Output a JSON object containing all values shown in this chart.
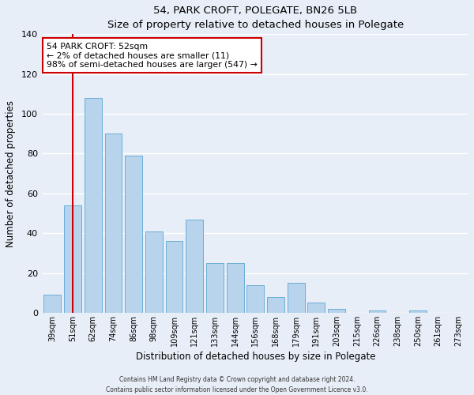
{
  "title": "54, PARK CROFT, POLEGATE, BN26 5LB",
  "subtitle": "Size of property relative to detached houses in Polegate",
  "xlabel": "Distribution of detached houses by size in Polegate",
  "ylabel": "Number of detached properties",
  "bar_labels": [
    "39sqm",
    "51sqm",
    "62sqm",
    "74sqm",
    "86sqm",
    "98sqm",
    "109sqm",
    "121sqm",
    "133sqm",
    "144sqm",
    "156sqm",
    "168sqm",
    "179sqm",
    "191sqm",
    "203sqm",
    "215sqm",
    "226sqm",
    "238sqm",
    "250sqm",
    "261sqm",
    "273sqm"
  ],
  "bar_heights": [
    9,
    54,
    108,
    90,
    79,
    41,
    36,
    47,
    25,
    25,
    14,
    8,
    15,
    5,
    2,
    0,
    1,
    0,
    1,
    0,
    0
  ],
  "bar_color": "#b8d4ec",
  "bar_edge_color": "#6aaed6",
  "vline_x": 1,
  "vline_color": "#cc0000",
  "ylim": [
    0,
    140
  ],
  "yticks": [
    0,
    20,
    40,
    60,
    80,
    100,
    120,
    140
  ],
  "annotation_title": "54 PARK CROFT: 52sqm",
  "annotation_line1": "← 2% of detached houses are smaller (11)",
  "annotation_line2": "98% of semi-detached houses are larger (547) →",
  "annotation_box_color": "#ffffff",
  "annotation_box_edge": "#cc0000",
  "footer1": "Contains HM Land Registry data © Crown copyright and database right 2024.",
  "footer2": "Contains public sector information licensed under the Open Government Licence v3.0.",
  "background_color": "#e8eef7",
  "plot_bg_color": "#e8eef7",
  "grid_color": "#ffffff"
}
